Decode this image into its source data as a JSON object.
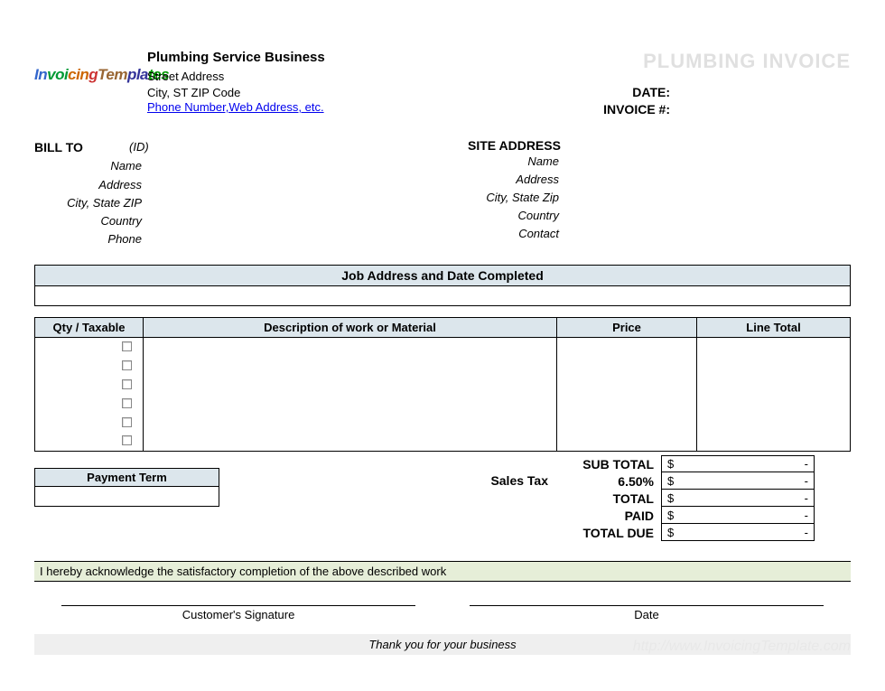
{
  "logo": {
    "text": "InvoicingTemplates"
  },
  "company": {
    "name": "Plumbing Service Business",
    "street": "Street Address",
    "citystzip": "City, ST  ZIP Code",
    "contact_link": "Phone Number,Web Address, etc."
  },
  "title": "PLUMBING INVOICE",
  "meta": {
    "date_label": "DATE:",
    "invoice_label": "INVOICE #:"
  },
  "billto": {
    "header": "BILL TO",
    "id": "(ID)",
    "labels": {
      "name": "Name",
      "address": "Address",
      "citystzip": "City, State ZIP",
      "country": "Country",
      "phone": "Phone"
    }
  },
  "site": {
    "header": "SITE ADDRESS",
    "labels": {
      "name": "Name",
      "address": "Address",
      "citystzip": "City, State Zip",
      "country": "Country",
      "contact": "Contact"
    }
  },
  "job_header": "Job Address and Date Completed",
  "columns": {
    "qty": "Qty / Taxable",
    "desc": "Description of work or Material",
    "price": "Price",
    "total": "Line Total"
  },
  "row_count": 6,
  "payment_term_label": "Payment Term",
  "sales_tax_label": "Sales Tax",
  "totals": {
    "subtotal_label": "SUB TOTAL",
    "tax_pct": "6.50%",
    "total_label": "TOTAL",
    "paid_label": "PAID",
    "due_label": "TOTAL DUE",
    "currency": "$",
    "dash": "-"
  },
  "ack_text": "I hereby acknowledge the satisfactory completion of the above described work",
  "sig": {
    "customer": "Customer's Signature",
    "date": "Date"
  },
  "thanks": "Thank you for your business",
  "watermark": "http://www.InvoicingTemplate.com",
  "colors": {
    "header_bg": "#dce6ec",
    "ack_bg": "#e6eed8",
    "thanks_bg": "#efefef",
    "title_color": "#e0e0e0"
  }
}
